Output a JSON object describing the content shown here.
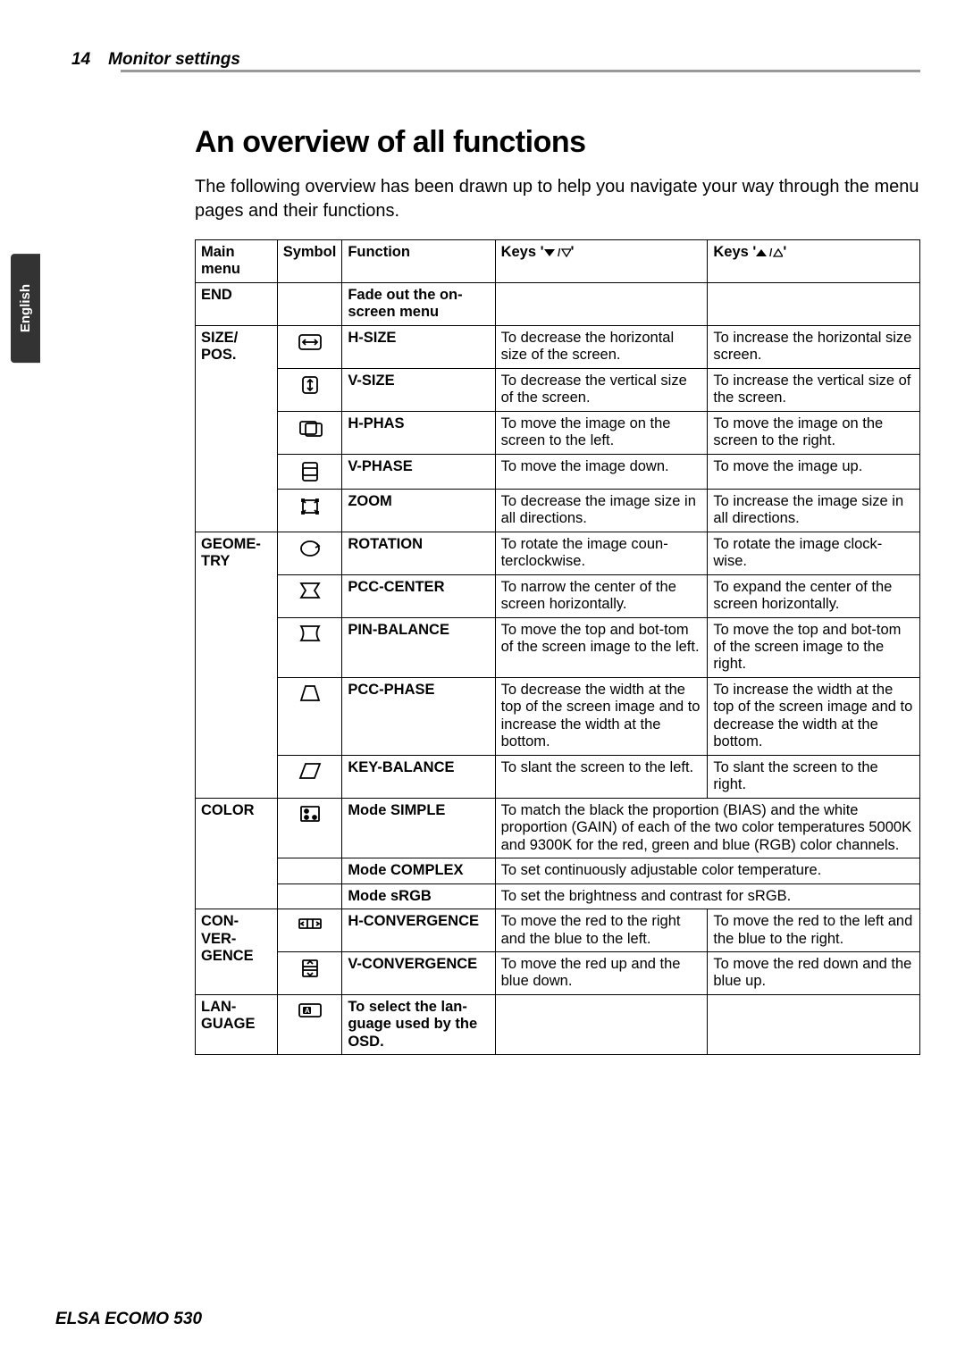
{
  "header": {
    "page_number": "14",
    "section": "Monitor settings",
    "language_tab": "English"
  },
  "title": "An overview of all functions",
  "intro": "The following overview has been drawn up to help you navigate your way through the menu pages and their functions.",
  "table": {
    "columns": {
      "main": "Main menu",
      "symbol": "Symbol",
      "function": "Function",
      "keys_down": "Keys '",
      "keys_down_suffix": "'",
      "keys_up": "Keys '",
      "keys_up_suffix": "'"
    },
    "rows": [
      {
        "main": "END",
        "func": "Fade out the on-screen menu",
        "k1": "",
        "k2": "",
        "bold_func": true
      },
      {
        "main": "SIZE/\nPOS.",
        "func": "H-SIZE",
        "k1": "To decrease the horizontal size of the screen.",
        "k2": "To increase the horizontal size screen.",
        "icon": "hsize"
      },
      {
        "func": "V-SIZE",
        "k1": "To decrease the vertical size of the screen.",
        "k2": "To increase the vertical size of the screen.",
        "icon": "vsize"
      },
      {
        "func": "H-PHAS",
        "k1": "To move the image on the screen to the left.",
        "k2": "To move the image on the screen to the right.",
        "icon": "hphas"
      },
      {
        "func": "V-PHASE",
        "k1": "To move the image down.",
        "k2": "To move the image up.",
        "icon": "vphase"
      },
      {
        "func": "ZOOM",
        "k1": "To decrease the image size in all directions.",
        "k2": "To increase the image size in all directions.",
        "icon": "zoom"
      },
      {
        "main": "GEOME-\nTRY",
        "func": "ROTATION",
        "k1": "To rotate the image coun-terclockwise.",
        "k2": "To rotate the image clock-wise.",
        "icon": "rotation"
      },
      {
        "func": "PCC-CENTER",
        "k1": "To narrow the center of the screen horizontally.",
        "k2": "To expand the center of the screen horizontally.",
        "icon": "pcccenter"
      },
      {
        "func": "PIN-BALANCE",
        "k1": "To move the top and bot-tom of the screen image to the left.",
        "k2": "To move the top and bot-tom of the screen image to the right.",
        "icon": "pinbalance"
      },
      {
        "func": "PCC-PHASE",
        "k1": "To decrease the width at the top of the screen image and to increase the width at the bottom.",
        "k2": "To increase the width at the top of the screen image and to decrease the width at the bottom.",
        "icon": "pccphase"
      },
      {
        "func": "KEY-BALANCE",
        "k1": "To slant the screen to the left.",
        "k2": "To slant the screen to the right.",
        "icon": "keybalance"
      },
      {
        "main": "COLOR",
        "func": "Mode SIMPLE",
        "merged_k": "To match the black the proportion (BIAS) and the white proportion (GAIN) of each of the two color temperatures 5000K and 9300K for the red, green and blue (RGB) color channels.",
        "icon": "color"
      },
      {
        "func": "Mode COMPLEX",
        "merged_k": "To set continuously adjustable color temperature."
      },
      {
        "func": "Mode sRGB",
        "merged_k": "To set the brightness and contrast for sRGB."
      },
      {
        "main": "CON-\nVER-\nGENCE",
        "func": "H-CONVERGENCE",
        "k1": "To move the red to the right and the blue to the left.",
        "k2": "To move the red to the left and the blue to the right.",
        "icon": "hconv"
      },
      {
        "func": "V-CONVERGENCE",
        "k1": "To move the red up and the blue down.",
        "k2": "To move the red down and the blue up.",
        "icon": "vconv"
      },
      {
        "main": "LAN-\nGUAGE",
        "func": "To select the lan-guage used by the OSD.",
        "k1": "",
        "k2": "",
        "bold_func": true,
        "icon": "language"
      }
    ]
  },
  "footer": "ELSA ECOMO 530",
  "colors": {
    "rule": "#999999",
    "tab_bg": "#333333",
    "tab_fg": "#ffffff",
    "text": "#000000",
    "border": "#000000"
  }
}
